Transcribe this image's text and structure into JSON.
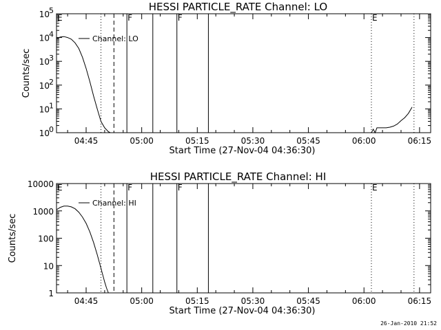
{
  "footer": {
    "timestamp": "26-Jan-2010 21:52"
  },
  "chart_data": [
    {
      "type": "line",
      "title": "HESSI PARTICLE_RATE Channel: LO",
      "xlabel": "Start Time (27-Nov-04 04:36:30)",
      "ylabel": "Counts/sec",
      "y_scale": "log",
      "ylim": [
        1,
        100000
      ],
      "y_ticks": [
        {
          "value": 1,
          "label": "10",
          "exp": "0"
        },
        {
          "value": 10,
          "label": "10",
          "exp": "1"
        },
        {
          "value": 100,
          "label": "10",
          "exp": "2"
        },
        {
          "value": 1000,
          "label": "10",
          "exp": "3"
        },
        {
          "value": 10000,
          "label": "10",
          "exp": "4"
        },
        {
          "value": 100000,
          "label": "10",
          "exp": "5"
        }
      ],
      "x_range_min": [
        "04:37",
        "06:18"
      ],
      "x_ticks": [
        "04:45",
        "05:00",
        "05:15",
        "05:30",
        "05:45",
        "06:00",
        "06:15"
      ],
      "legend": "Channel: LO",
      "series": [
        {
          "x_min": [
            "04:37:00",
            "04:38:00",
            "04:39:00",
            "04:40:00",
            "04:41:00",
            "04:42:00",
            "04:43:00",
            "04:44:00",
            "04:45:00",
            "04:46:00",
            "04:47:00",
            "04:48:00",
            "04:49:00",
            "04:50:00",
            "04:51:00",
            "04:51:30"
          ],
          "y": [
            9000,
            10500,
            11000,
            10000,
            8500,
            6000,
            3500,
            1500,
            500,
            140,
            35,
            10,
            3,
            1.6,
            1.1,
            1
          ]
        },
        {
          "x_min": [
            "06:02:00",
            "06:02:30",
            "06:03:00",
            "06:03:30",
            "06:04:00",
            "06:05:00",
            "06:06:00",
            "06:07:00",
            "06:08:00",
            "06:09:00",
            "06:10:00",
            "06:11:00",
            "06:12:00",
            "06:13:00"
          ],
          "y": [
            1,
            1.4,
            1,
            1.6,
            1.6,
            1.6,
            1.6,
            1.7,
            1.9,
            2.3,
            3.2,
            4.3,
            6.5,
            12
          ]
        }
      ],
      "markers": [
        {
          "time": "04:37:00",
          "style": "solid",
          "label": "E"
        },
        {
          "time": "04:49:00",
          "style": "dotted",
          "label": ""
        },
        {
          "time": "04:52:30",
          "style": "dashed",
          "label": ""
        },
        {
          "time": "04:56:00",
          "style": "solid",
          "label": "F"
        },
        {
          "time": "05:03:00",
          "style": "solid",
          "label": ""
        },
        {
          "time": "05:09:30",
          "style": "solid",
          "label": "F"
        },
        {
          "time": "05:18:00",
          "style": "solid",
          "label": ""
        },
        {
          "time": "06:02:00",
          "style": "dotted",
          "label": "E"
        },
        {
          "time": "06:13:30",
          "style": "dotted",
          "label": ""
        }
      ]
    },
    {
      "type": "line",
      "title": "HESSI PARTICLE_RATE Channel: HI",
      "xlabel": "Start Time (27-Nov-04 04:36:30)",
      "ylabel": "Counts/sec",
      "y_scale": "log",
      "ylim": [
        1,
        10000
      ],
      "y_ticks": [
        {
          "value": 1,
          "label": "1",
          "exp": ""
        },
        {
          "value": 10,
          "label": "10",
          "exp": ""
        },
        {
          "value": 100,
          "label": "100",
          "exp": ""
        },
        {
          "value": 1000,
          "label": "1000",
          "exp": ""
        },
        {
          "value": 10000,
          "label": "10000",
          "exp": ""
        }
      ],
      "x_range_min": [
        "04:37",
        "06:18"
      ],
      "x_ticks": [
        "04:45",
        "05:00",
        "05:15",
        "05:30",
        "05:45",
        "06:00",
        "06:15"
      ],
      "legend": "Channel: HI",
      "series": [
        {
          "x_min": [
            "04:37:00",
            "04:38:00",
            "04:39:00",
            "04:40:00",
            "04:41:00",
            "04:42:00",
            "04:43:00",
            "04:44:00",
            "04:45:00",
            "04:46:00",
            "04:47:00",
            "04:48:00",
            "04:49:00",
            "04:50:00",
            "04:50:30",
            "04:51:00"
          ],
          "y": [
            1100,
            1350,
            1500,
            1500,
            1400,
            1200,
            900,
            600,
            350,
            170,
            70,
            25,
            8,
            2.5,
            1.5,
            1
          ]
        }
      ],
      "markers": [
        {
          "time": "04:37:00",
          "style": "solid",
          "label": "E"
        },
        {
          "time": "04:49:00",
          "style": "dotted",
          "label": ""
        },
        {
          "time": "04:52:30",
          "style": "dashed",
          "label": ""
        },
        {
          "time": "04:56:00",
          "style": "solid",
          "label": "F"
        },
        {
          "time": "05:03:00",
          "style": "solid",
          "label": ""
        },
        {
          "time": "05:09:30",
          "style": "solid",
          "label": "F"
        },
        {
          "time": "05:18:00",
          "style": "solid",
          "label": ""
        },
        {
          "time": "06:02:00",
          "style": "dotted",
          "label": "E"
        },
        {
          "time": "06:13:30",
          "style": "dotted",
          "label": ""
        }
      ]
    }
  ]
}
